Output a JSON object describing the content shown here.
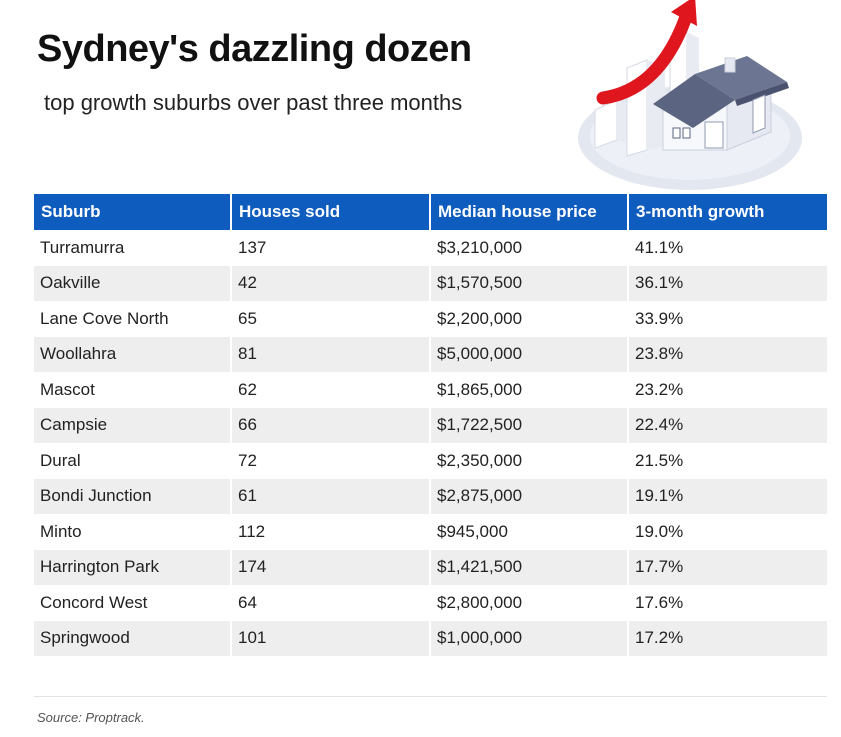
{
  "header": {
    "title": "Sydney's dazzling dozen",
    "subtitle": "top growth suburbs over past three months"
  },
  "illustration": {
    "icon": "house-growth-arrow-icon",
    "colors": {
      "arrow": "#e0161e",
      "roof": "#5b6480",
      "wall": "#f4f6fa",
      "ground": "#dfe4ee"
    }
  },
  "table": {
    "header_color": "#0f5cbf",
    "columns": [
      "Suburb",
      "Houses sold",
      "Median house price",
      "3-month growth"
    ]
  },
  "chart_data": {
    "type": "table",
    "columns": [
      "Suburb",
      "Houses sold",
      "Median house price",
      "3-month growth"
    ],
    "rows": [
      [
        "Turramurra",
        "137",
        "$3,210,000",
        "41.1%"
      ],
      [
        "Oakville",
        "42",
        "$1,570,500",
        "36.1%"
      ],
      [
        "Lane Cove North",
        "65",
        "$2,200,000",
        "33.9%"
      ],
      [
        "Woollahra",
        "81",
        "$5,000,000",
        "23.8%"
      ],
      [
        "Mascot",
        "62",
        "$1,865,000",
        "23.2%"
      ],
      [
        "Campsie",
        "66",
        "$1,722,500",
        "22.4%"
      ],
      [
        "Dural",
        "72",
        "$2,350,000",
        "21.5%"
      ],
      [
        "Bondi Junction",
        "61",
        "$2,875,000",
        "19.1%"
      ],
      [
        "Minto",
        "112",
        "$945,000",
        "19.0%"
      ],
      [
        "Harrington Park",
        "174",
        "$1,421,500",
        "17.7%"
      ],
      [
        "Concord West",
        "64",
        "$2,800,000",
        "17.6%"
      ],
      [
        "Springwood",
        "101",
        "$1,000,000",
        "17.2%"
      ]
    ]
  },
  "footer": {
    "source": "Source: Proptrack."
  }
}
